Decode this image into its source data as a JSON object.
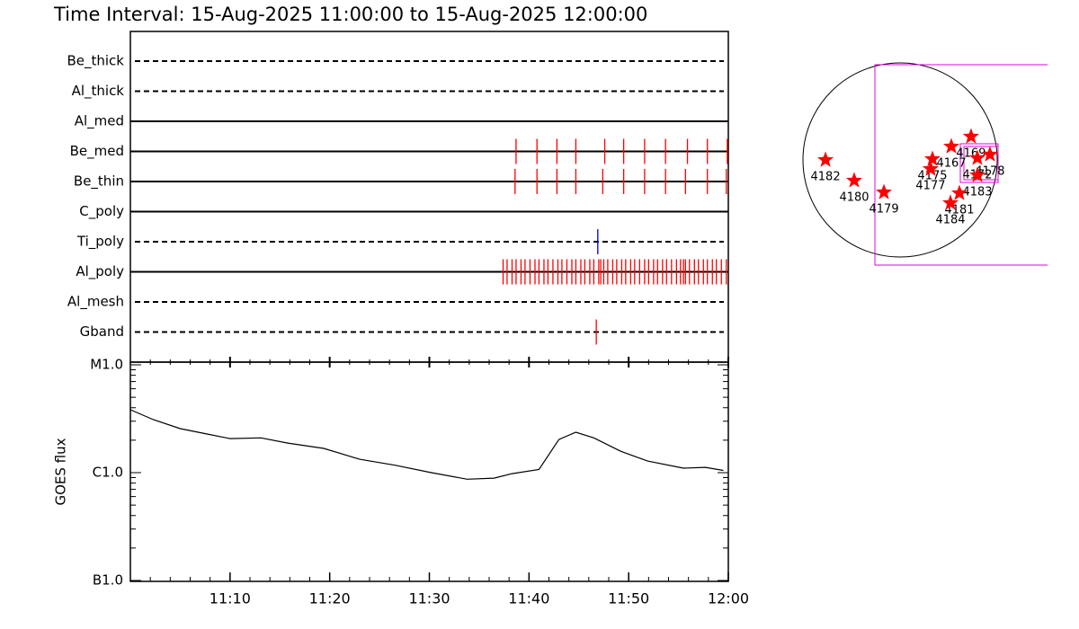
{
  "chart_data": [
    {
      "type": "timeline",
      "title": "Time Interval: 15-Aug-2025 11:00:00 to 15-Aug-2025 12:00:00",
      "xlim": [
        0,
        60
      ],
      "rows": [
        {
          "name": "Be_thick",
          "line": "dashed",
          "color": "#ff0000",
          "values": []
        },
        {
          "name": "Al_thick",
          "line": "dashed",
          "color": "#ff0000",
          "values": []
        },
        {
          "name": "Al_med",
          "line": "solid",
          "color": "#ff0000",
          "values": []
        },
        {
          "name": "Be_med",
          "line": "solid",
          "color": "#ff0000",
          "values": [
            38.7,
            40.8,
            42.8,
            44.7,
            47.6,
            49.5,
            51.6,
            53.7,
            55.9,
            57.9,
            59.9
          ]
        },
        {
          "name": "Be_thin",
          "line": "solid",
          "color": "#ff0000",
          "values": [
            38.6,
            40.8,
            42.8,
            44.7,
            47.4,
            49.5,
            51.6,
            53.7,
            55.7,
            57.9,
            59.8
          ]
        },
        {
          "name": "C_poly",
          "line": "solid",
          "color": "#ff0000",
          "values": []
        },
        {
          "name": "Ti_poly",
          "line": "dashed",
          "color": "#0000cc",
          "values": [
            46.9
          ]
        },
        {
          "name": "Al_poly",
          "line": "solid",
          "color": "#ff0000",
          "values": [
            37.4,
            37.8,
            38.3,
            38.7,
            39.2,
            39.6,
            40.1,
            40.6,
            41.0,
            41.5,
            41.9,
            42.4,
            42.9,
            43.3,
            43.8,
            44.3,
            44.7,
            45.2,
            45.6,
            46.1,
            46.5,
            47.0,
            47.2,
            47.5,
            47.9,
            48.4,
            48.8,
            49.3,
            49.7,
            50.2,
            50.6,
            51.1,
            51.6,
            52.0,
            52.5,
            52.9,
            53.4,
            53.8,
            54.3,
            54.8,
            55.2,
            55.5,
            55.7,
            56.1,
            56.6,
            57.0,
            57.5,
            57.9,
            58.4,
            58.8,
            59.3,
            59.8
          ]
        },
        {
          "name": "Al_mesh",
          "line": "dashed",
          "color": "#ff0000",
          "values": []
        },
        {
          "name": "Gband",
          "line": "dashed",
          "color": "#ff0000",
          "values": [
            46.75
          ]
        }
      ]
    },
    {
      "type": "line",
      "y_label": "GOES flux",
      "log_y": true,
      "color": "#000000",
      "xlim": [
        0,
        60
      ],
      "xticks": [
        {
          "value": 10,
          "label": "11:10"
        },
        {
          "value": 20,
          "label": "11:20"
        },
        {
          "value": 30,
          "label": "11:30"
        },
        {
          "value": 40,
          "label": "11:40"
        },
        {
          "value": 50,
          "label": "11:50"
        },
        {
          "value": 60,
          "label": "12:00"
        }
      ],
      "ylim": [
        1e-07,
        1e-05
      ],
      "yticks": [
        {
          "value": 1e-07,
          "label": "B1.0"
        },
        {
          "value": 1e-06,
          "label": "C1.0"
        },
        {
          "value": 1e-05,
          "label": "M1.0"
        }
      ],
      "x": [
        0,
        2.3,
        5.0,
        7.7,
        10.0,
        13.1,
        15.8,
        19.4,
        23.0,
        26.6,
        30.2,
        33.8,
        36.5,
        38.3,
        41.0,
        43.0,
        44.7,
        46.5,
        49.2,
        51.9,
        55.5,
        57.7,
        59.5
      ],
      "values": [
        3.83e-06,
        3.1e-06,
        2.56e-06,
        2.28e-06,
        2.07e-06,
        2.1e-06,
        1.88e-06,
        1.68e-06,
        1.33e-06,
        1.17e-06,
        1e-06,
        8.7e-07,
        8.9e-07,
        9.8e-07,
        1.07e-06,
        2.03e-06,
        2.37e-06,
        2.1e-06,
        1.58e-06,
        1.28e-06,
        1.1e-06,
        1.12e-06,
        1.05e-06
      ]
    },
    {
      "type": "scatter",
      "color": "#ff0000",
      "xlim": [
        -1000,
        1000
      ],
      "ylim": [
        -1000,
        1000
      ],
      "labels": [
        "4182",
        "4180",
        "4179",
        "4175",
        "4177",
        "4167",
        "4169",
        "4172",
        "4178",
        "4183",
        "4181",
        "4184"
      ],
      "x": [
        -730,
        -449,
        -158,
        317,
        299,
        502,
        695,
        757,
        880,
        757,
        581,
        493
      ],
      "y": [
        0,
        -202,
        -317,
        9,
        -88,
        132,
        229,
        18,
        53,
        -150,
        -326,
        -422
      ]
    }
  ]
}
